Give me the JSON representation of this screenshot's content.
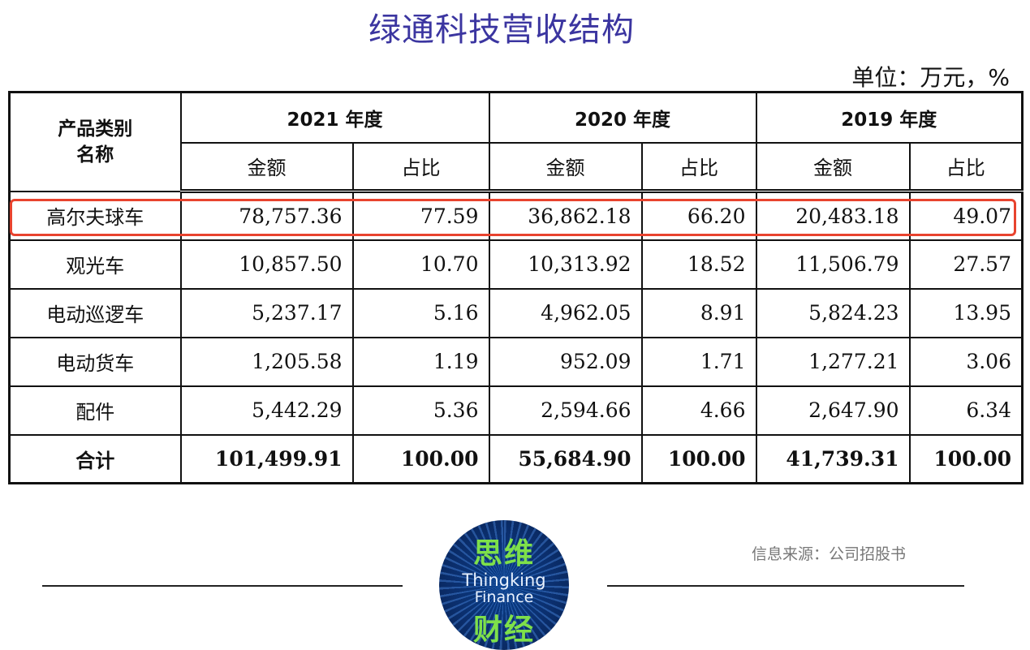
{
  "title": "绿通科技营收结构",
  "unit": "单位：万元，%",
  "table": {
    "category_header": [
      "产品类别",
      "名称"
    ],
    "years": [
      "2021 年度",
      "2020 年度",
      "2019 年度"
    ],
    "sub_headers": [
      "金额",
      "占比"
    ],
    "rows": [
      {
        "name": "高尔夫球车",
        "cells": [
          "78,757.36",
          "77.59",
          "36,862.18",
          "66.20",
          "20,483.18",
          "49.07"
        ],
        "highlighted": true
      },
      {
        "name": "观光车",
        "cells": [
          "10,857.50",
          "10.70",
          "10,313.92",
          "18.52",
          "11,506.79",
          "27.57"
        ]
      },
      {
        "name": "电动巡逻车",
        "cells": [
          "5,237.17",
          "5.16",
          "4,962.05",
          "8.91",
          "5,824.23",
          "13.95"
        ]
      },
      {
        "name": "电动货车",
        "cells": [
          "1,205.58",
          "1.19",
          "952.09",
          "1.71",
          "1,277.21",
          "3.06"
        ]
      },
      {
        "name": "配件",
        "cells": [
          "5,442.29",
          "5.36",
          "2,594.66",
          "4.66",
          "2,647.90",
          "6.34"
        ]
      },
      {
        "name": "合计",
        "cells": [
          "101,499.91",
          "100.00",
          "55,684.90",
          "100.00",
          "41,739.31",
          "100.00"
        ],
        "total": true
      }
    ]
  },
  "source": "信息来源：公司招股书",
  "logo": {
    "cn_top": "思维",
    "en_line1": "Thingking",
    "en_line2": "Finance",
    "cn_bottom": "财经"
  },
  "colors": {
    "title": "#3b35a0",
    "highlight_border": "#e8432e",
    "logo_green": "#7ee04a",
    "logo_blue": "#0b2f6e"
  }
}
